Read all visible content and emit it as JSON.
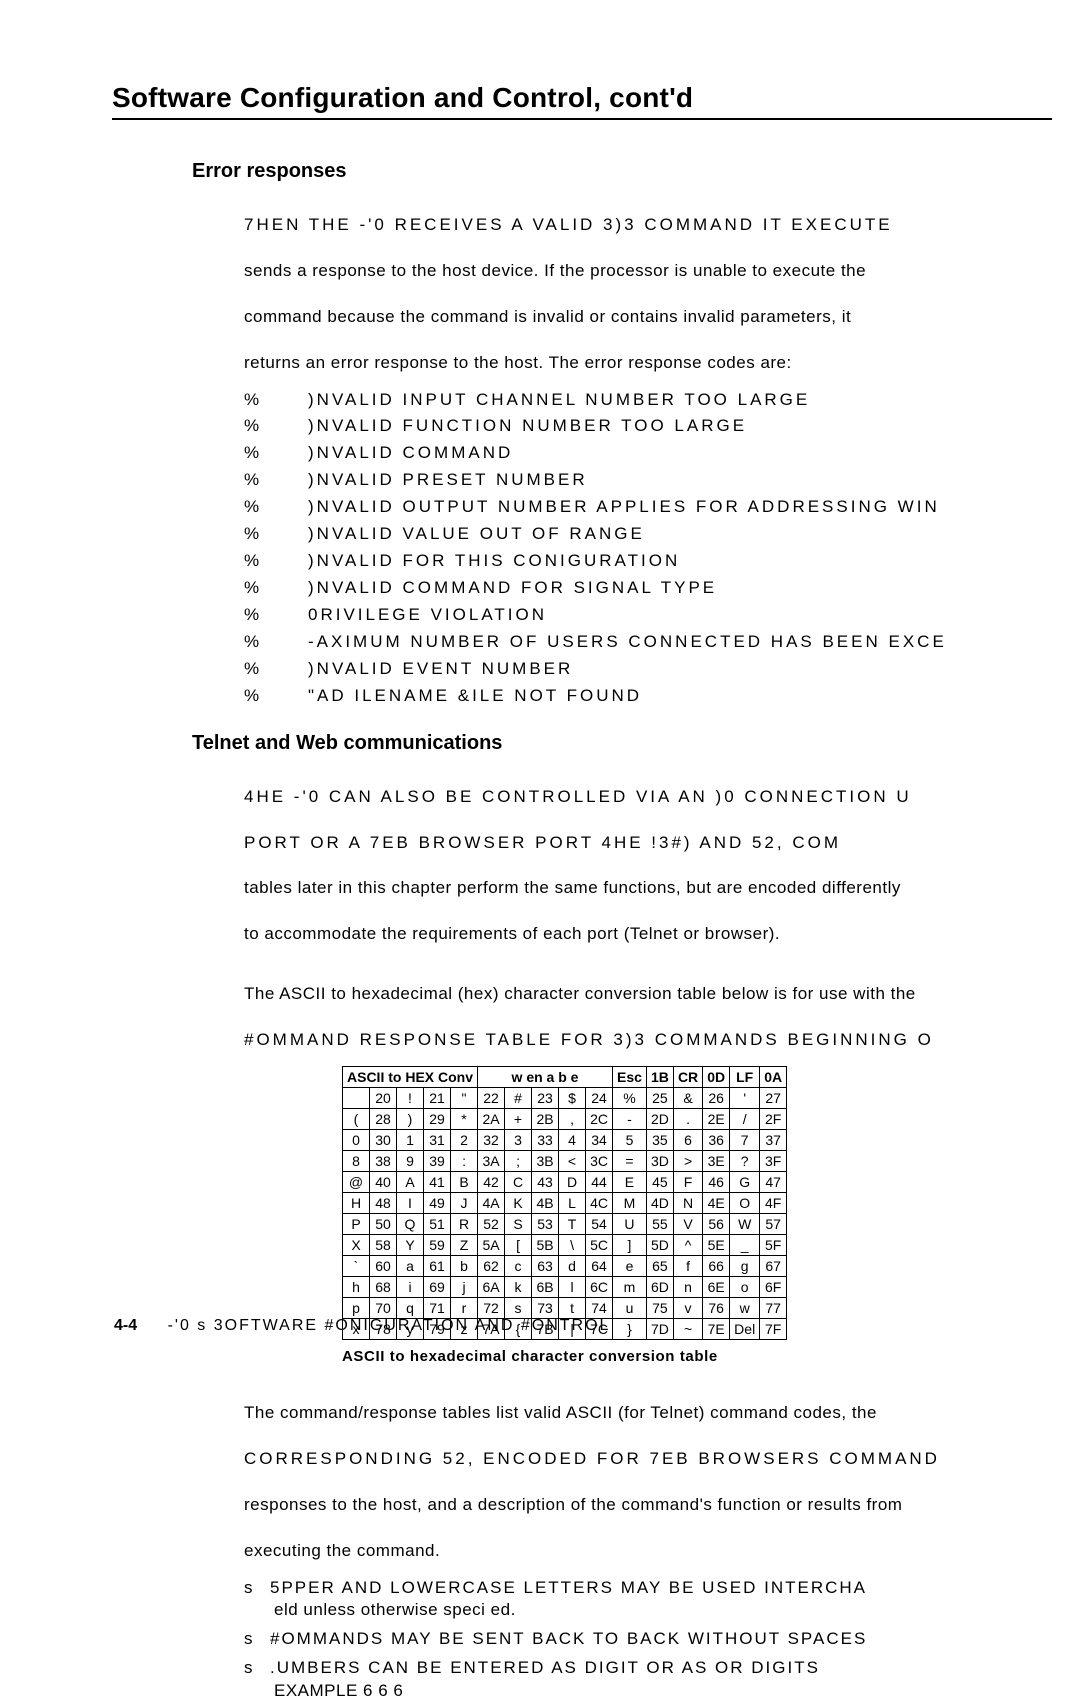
{
  "theme": {
    "bg": "#ffffff",
    "fg": "#000000",
    "rule": "#000000"
  },
  "title": "Software Configuration and Control, cont'd",
  "sections": {
    "error": {
      "heading": "Error responses",
      "intro_l1": "7HEN THE -'0       RECEIVES A VALID 3)3 COMMAND  IT EXECUTE",
      "intro_l2": "sends a response to the host device. If the processor is unable to execute the",
      "intro_l3": "command because the command is invalid or contains invalid parameters, it",
      "intro_l4": "returns an error response to the host. The error response codes are:",
      "items": [
        ")NVALID INPUT CHANNEL NUMBER  TOO LARGE",
        ")NVALID FUNCTION NUMBER  TOO LARGE",
        ")NVALID COMMAND",
        ")NVALID PRESET NUMBER",
        ")NVALID OUTPUT NUMBER  APPLIES FOR ADDRESSING WIN",
        ")NVALID VALUE  OUT OF RANGE",
        ")NVALID FOR THIS CONIGURATION",
        ")NVALID COMMAND FOR SIGNAL TYPE",
        "0RIVILEGE VIOLATION",
        "-AXIMUM NUMBER OF USERS CONNECTED HAS BEEN EXCE",
        ")NVALID EVENT NUMBER",
        "\"AD ILENAME &ILE NOT FOUND"
      ]
    },
    "telnet": {
      "heading": "Telnet and Web communications",
      "p1_l1": "4HE -'0       CAN ALSO BE CONTROLLED VIA AN )0 CONNECTION U",
      "p1_l2": "  PORT     OR A 7EB BROWSER  PORT       4HE !3#) AND 52, COM",
      "p1_l3": "tables later in this chapter perform the same functions, but are encoded differently",
      "p1_l4": "to accommodate the requirements of each port (Telnet or browser).",
      "p2_l1": "The ASCII to hexadecimal (hex) character conversion table below is for use with the",
      "p2_l2": "#OMMAND RESPONSE TABLE FOR 3)3 COMMANDS  BEGINNING O",
      "caption": "ASCII to hexadecimal character conversion table",
      "p3_l1": "The command/response tables list valid ASCII (for Telnet) command codes, the",
      "p3_l2": "CORRESPONDING 52, ENCODED  FOR 7EB BROWSERS  COMMAND",
      "p3_l3": "responses to the host, and a description of the command's function or results from",
      "p3_l4": "executing the command.",
      "notes": [
        {
          "wide": "5PPER  AND LOWERCASE LETTERS MAY BE USED INTERCHA",
          "sub": "eld unless otherwise speci   ed."
        },
        {
          "wide": "#OMMANDS MAY BE SENT BACK TO BACK WITHOUT SPACES",
          "sub": ""
        },
        {
          "wide": ".UMBERS CAN BE ENTERED AS   DIGIT OR AS  OR  DIGITS",
          "sub": "EXAMPLE   6        6        6"
        }
      ]
    }
  },
  "ascii_table": {
    "header_left": "ASCII to HEX Conv",
    "header_center": "w  en  a  b e",
    "fixed": [
      [
        "Esc",
        "1B"
      ],
      [
        "CR",
        "0D"
      ],
      [
        "LF",
        "0A"
      ]
    ],
    "rows": [
      [
        [
          " ",
          "20"
        ],
        [
          "!",
          "21"
        ],
        [
          "\"",
          "22"
        ],
        [
          "#",
          "23"
        ],
        [
          "$",
          "24"
        ],
        [
          "%",
          "25"
        ],
        [
          "&",
          "26"
        ],
        [
          "'",
          "27"
        ]
      ],
      [
        [
          "(",
          "28"
        ],
        [
          ")",
          "29"
        ],
        [
          "*",
          "2A"
        ],
        [
          "+",
          "2B"
        ],
        [
          ",",
          "2C"
        ],
        [
          "-",
          "2D"
        ],
        [
          ".",
          "2E"
        ],
        [
          "/",
          "2F"
        ]
      ],
      [
        [
          "0",
          "30"
        ],
        [
          "1",
          "31"
        ],
        [
          "2",
          "32"
        ],
        [
          "3",
          "33"
        ],
        [
          "4",
          "34"
        ],
        [
          "5",
          "35"
        ],
        [
          "6",
          "36"
        ],
        [
          "7",
          "37"
        ]
      ],
      [
        [
          "8",
          "38"
        ],
        [
          "9",
          "39"
        ],
        [
          ":",
          "3A"
        ],
        [
          ";",
          "3B"
        ],
        [
          "<",
          "3C"
        ],
        [
          "=",
          "3D"
        ],
        [
          ">",
          "3E"
        ],
        [
          "?",
          "3F"
        ]
      ],
      [
        [
          "@",
          "40"
        ],
        [
          "A",
          "41"
        ],
        [
          "B",
          "42"
        ],
        [
          "C",
          "43"
        ],
        [
          "D",
          "44"
        ],
        [
          "E",
          "45"
        ],
        [
          "F",
          "46"
        ],
        [
          "G",
          "47"
        ]
      ],
      [
        [
          "H",
          "48"
        ],
        [
          "I",
          "49"
        ],
        [
          "J",
          "4A"
        ],
        [
          "K",
          "4B"
        ],
        [
          "L",
          "4C"
        ],
        [
          "M",
          "4D"
        ],
        [
          "N",
          "4E"
        ],
        [
          "O",
          "4F"
        ]
      ],
      [
        [
          "P",
          "50"
        ],
        [
          "Q",
          "51"
        ],
        [
          "R",
          "52"
        ],
        [
          "S",
          "53"
        ],
        [
          "T",
          "54"
        ],
        [
          "U",
          "55"
        ],
        [
          "V",
          "56"
        ],
        [
          "W",
          "57"
        ]
      ],
      [
        [
          "X",
          "58"
        ],
        [
          "Y",
          "59"
        ],
        [
          "Z",
          "5A"
        ],
        [
          "[",
          "5B"
        ],
        [
          "\\",
          "5C"
        ],
        [
          "]",
          "5D"
        ],
        [
          "^",
          "5E"
        ],
        [
          "_",
          "5F"
        ]
      ],
      [
        [
          "`",
          "60"
        ],
        [
          "a",
          "61"
        ],
        [
          "b",
          "62"
        ],
        [
          "c",
          "63"
        ],
        [
          "d",
          "64"
        ],
        [
          "e",
          "65"
        ],
        [
          "f",
          "66"
        ],
        [
          "g",
          "67"
        ]
      ],
      [
        [
          "h",
          "68"
        ],
        [
          "i",
          "69"
        ],
        [
          "j",
          "6A"
        ],
        [
          "k",
          "6B"
        ],
        [
          "l",
          "6C"
        ],
        [
          "m",
          "6D"
        ],
        [
          "n",
          "6E"
        ],
        [
          "o",
          "6F"
        ]
      ],
      [
        [
          "p",
          "70"
        ],
        [
          "q",
          "71"
        ],
        [
          "r",
          "72"
        ],
        [
          "s",
          "73"
        ],
        [
          "t",
          "74"
        ],
        [
          "u",
          "75"
        ],
        [
          "v",
          "76"
        ],
        [
          "w",
          "77"
        ]
      ],
      [
        [
          "x",
          "78"
        ],
        [
          "y",
          "79"
        ],
        [
          "z",
          "7A"
        ],
        [
          "{",
          "7B"
        ],
        [
          "|",
          "7C"
        ],
        [
          "}",
          "7D"
        ],
        [
          "~",
          "7E"
        ],
        [
          "Del",
          "7F"
        ]
      ]
    ]
  },
  "footer": {
    "page": "4-4",
    "text": "-'0      s 3OFTWARE #ONIGURATION AND #ONTROL"
  }
}
